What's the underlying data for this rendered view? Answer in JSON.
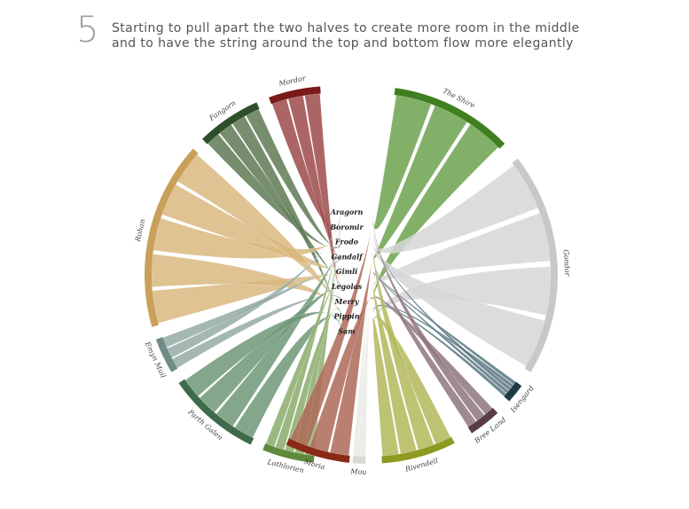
{
  "step": "5",
  "caption": {
    "line1": "Starting to pull apart the two halves to create more room in the middle",
    "line2": "and to have the string around the top and bottom flow more elegantly"
  },
  "characters": [
    "Aragorn",
    "Boromir",
    "Frodo",
    "Gandalf",
    "Gimli",
    "Legolas",
    "Merry",
    "Pippin",
    "Sam"
  ],
  "locations_left": [
    {
      "name": "Mordor",
      "color": "#7a1a1a",
      "ribbon": "#9c4a4a"
    },
    {
      "name": "Fangorn",
      "color": "#2f4f2a",
      "ribbon": "#5f7a55"
    },
    {
      "name": "Rohan",
      "color": "#c9a05a",
      "ribbon": "#d9b880"
    },
    {
      "name": "Emyn Muil",
      "color": "#6f8c86",
      "ribbon": "#94aaa6"
    },
    {
      "name": "Parth Galen",
      "color": "#3e6b4a",
      "ribbon": "#6f9878"
    },
    {
      "name": "Lothlorien",
      "color": "#5e8a3a",
      "ribbon": "#8aab6b"
    }
  ],
  "locations_right": [
    {
      "name": "The Shire",
      "color": "#3f7f1f",
      "ribbon": "#6da24f"
    },
    {
      "name": "Gondor",
      "color": "#c8c8c8",
      "ribbon": "#d6d6d6"
    },
    {
      "name": "Isengard",
      "color": "#1f3a44",
      "ribbon": "#587680"
    },
    {
      "name": "Bree Land",
      "color": "#5a3d44",
      "ribbon": "#8e767c"
    },
    {
      "name": "Rivendell",
      "color": "#8e9a20",
      "ribbon": "#b2b85a"
    },
    {
      "name": "Mou",
      "color": "#d8d8d0",
      "ribbon": "#e4e4de"
    },
    {
      "name": "Moria",
      "color": "#8a2a14",
      "ribbon": "#ad6a58"
    }
  ]
}
